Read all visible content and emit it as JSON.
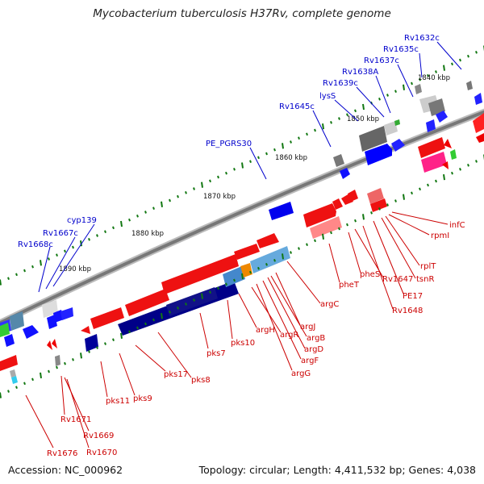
{
  "title": "Mycobacterium tuberculosis H37Rv, complete genome",
  "footer": {
    "accession": "Accession: NC_000962",
    "topology": "Topology: circular; Length: 4,411,532 bp; Genes: 4,038"
  },
  "scale_labels": [
    "1840 kbp",
    "1850 kbp",
    "1860 kbp",
    "1870 kbp",
    "1880 kbp",
    "1890 kbp"
  ],
  "upper_gene_labels": [
    "Rv1632c",
    "Rv1635c",
    "Rv1637c",
    "Rv1638A",
    "Rv1639c",
    "lysS",
    "Rv1645c",
    "PE_PGRS30",
    "cyp139",
    "Rv1667c",
    "Rv1668c"
  ],
  "lower_gene_labels": [
    "infC",
    "rpmI",
    "rplT",
    "tsnR",
    "PE17",
    "Rv1648",
    "Rv1647",
    "pheS",
    "pheT",
    "argC",
    "argJ",
    "argB",
    "argD",
    "argF",
    "argG",
    "argR",
    "argH",
    "pks10",
    "pks7",
    "pks8",
    "pks17",
    "pks9",
    "pks11",
    "Rv1671",
    "Rv1669",
    "Rv1670",
    "Rv1676"
  ],
  "colors": {
    "backbone": "#888888",
    "upper_feature": "#1a1aff",
    "lower_feature": "#ee1111",
    "label_upper": "#0000cc",
    "label_lower": "#cc0000",
    "tick": "#117711"
  }
}
